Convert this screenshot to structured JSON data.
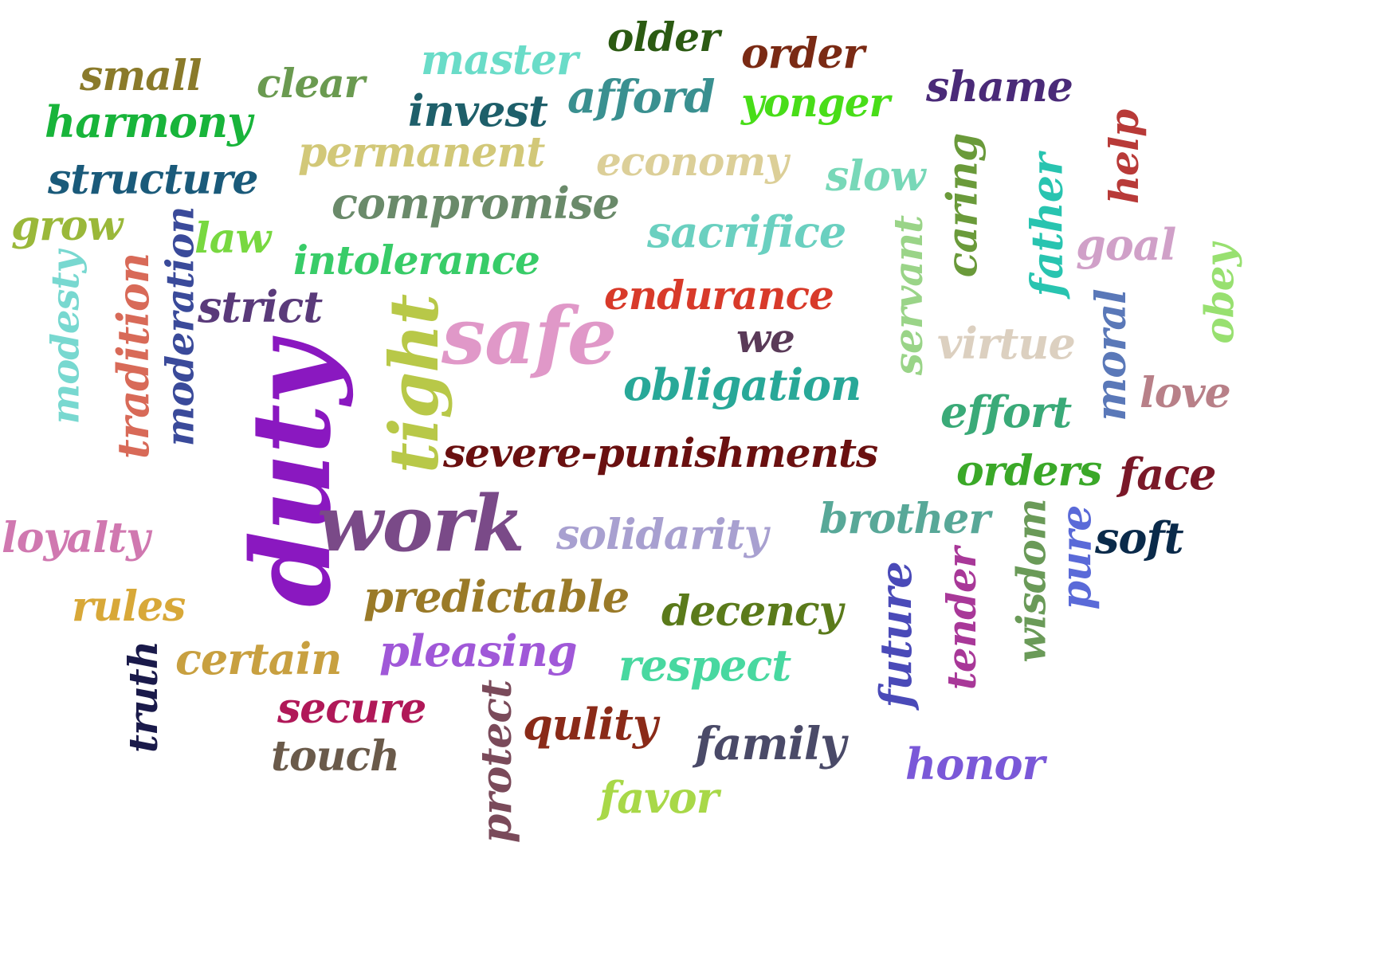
{
  "words": [
    {
      "text": "older",
      "color": "#2b5a12"
    },
    {
      "text": "order",
      "color": "#7a2a14"
    },
    {
      "text": "small",
      "color": "#8a7a2a"
    },
    {
      "text": "clear",
      "color": "#6a9a50"
    },
    {
      "text": "master",
      "color": "#6adcc8"
    },
    {
      "text": "harmony",
      "color": "#18b43a"
    },
    {
      "text": "invest",
      "color": "#1e5f6a"
    },
    {
      "text": "afford",
      "color": "#3a9090"
    },
    {
      "text": "yonger",
      "color": "#48dd18"
    },
    {
      "text": "shame",
      "color": "#4a2a78"
    },
    {
      "text": "permanent",
      "color": "#d2c878"
    },
    {
      "text": "economy",
      "color": "#dccf98"
    },
    {
      "text": "structure",
      "color": "#1a5a7a"
    },
    {
      "text": "slow",
      "color": "#78d8b8"
    },
    {
      "text": "caring",
      "color": "#6a9a3a"
    },
    {
      "text": "father",
      "color": "#28c4b0"
    },
    {
      "text": "help",
      "color": "#b83a38"
    },
    {
      "text": "compromise",
      "color": "#6a8a6a"
    },
    {
      "text": "grow",
      "color": "#9ab83a"
    },
    {
      "text": "law",
      "color": "#78d840"
    },
    {
      "text": "sacrifice",
      "color": "#6ad0c0"
    },
    {
      "text": "intolerance",
      "color": "#38cc68"
    },
    {
      "text": "servant",
      "color": "#9ad488"
    },
    {
      "text": "goal",
      "color": "#d0a0c8"
    },
    {
      "text": "obey",
      "color": "#98e070"
    },
    {
      "text": "modesty",
      "color": "#78d8d0"
    },
    {
      "text": "tradition",
      "color": "#d86a58"
    },
    {
      "text": "moderation",
      "color": "#3a4a9a"
    },
    {
      "text": "strict",
      "color": "#5a3a7a"
    },
    {
      "text": "tight",
      "color": "#b8c848"
    },
    {
      "text": "safe",
      "color": "#e098c8"
    },
    {
      "text": "endurance",
      "color": "#d83a2a"
    },
    {
      "text": "we",
      "color": "#5a3a58"
    },
    {
      "text": "virtue",
      "color": "#dcd0c0"
    },
    {
      "text": "moral",
      "color": "#5a78b8"
    },
    {
      "text": "obligation",
      "color": "#28a898"
    },
    {
      "text": "effort",
      "color": "#3aaa78"
    },
    {
      "text": "love",
      "color": "#b88088"
    },
    {
      "text": "duty",
      "color": "#8a18c0"
    },
    {
      "text": "severe-punishments",
      "color": "#6a1010"
    },
    {
      "text": "orders",
      "color": "#3aa828"
    },
    {
      "text": "face",
      "color": "#7a1828"
    },
    {
      "text": "work",
      "color": "#7a4a88"
    },
    {
      "text": "brother",
      "color": "#58a898"
    },
    {
      "text": "loyalty",
      "color": "#d078b0"
    },
    {
      "text": "solidarity",
      "color": "#a8a0d0"
    },
    {
      "text": "soft",
      "color": "#0a2a4a"
    },
    {
      "text": "pure",
      "color": "#5a6ad8"
    },
    {
      "text": "wisdom",
      "color": "#6a9a58"
    },
    {
      "text": "rules",
      "color": "#d8a838"
    },
    {
      "text": "predictable",
      "color": "#9a7a28"
    },
    {
      "text": "decency",
      "color": "#5a7a1a"
    },
    {
      "text": "future",
      "color": "#4a4ab8"
    },
    {
      "text": "tender",
      "color": "#a83898"
    },
    {
      "text": "truth",
      "color": "#1a1a4a"
    },
    {
      "text": "certain",
      "color": "#c8a040"
    },
    {
      "text": "pleasing",
      "color": "#a058d8"
    },
    {
      "text": "respect",
      "color": "#48d8a0"
    },
    {
      "text": "secure",
      "color": "#b01858"
    },
    {
      "text": "protect",
      "color": "#7a4a5a"
    },
    {
      "text": "qulity",
      "color": "#8a2a18"
    },
    {
      "text": "family",
      "color": "#4a4a68"
    },
    {
      "text": "touch",
      "color": "#6a5a4a"
    },
    {
      "text": "honor",
      "color": "#7a58d8"
    },
    {
      "text": "favor",
      "color": "#a8d848"
    }
  ]
}
